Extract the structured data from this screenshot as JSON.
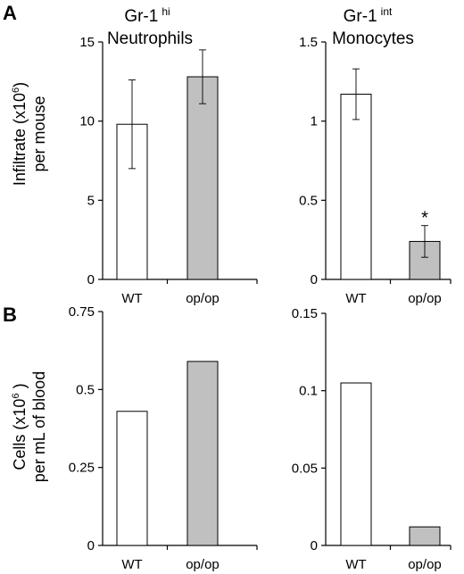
{
  "panel_labels": {
    "a": "A",
    "b": "B"
  },
  "column_titles": {
    "left": {
      "main": "Gr-1",
      "sup": "hi",
      "sub": "Neutrophils"
    },
    "right": {
      "main": "Gr-1",
      "sup": "int",
      "sub": "Monocytes"
    }
  },
  "row_ylabels": {
    "a": {
      "line1_pre": "Infiltrate (x10",
      "line1_sup": "6",
      "line1_post": ")",
      "line2": "per mouse"
    },
    "b": {
      "line1_pre": "Cells (x10",
      "line1_sup": "6",
      "line1_post": " )",
      "line2": "per mL of blood"
    }
  },
  "colors": {
    "wt_fill": "#ffffff",
    "opop_fill": "#c0c0c0",
    "outline": "#000000"
  },
  "chart_data": [
    {
      "id": "A-left",
      "type": "bar",
      "categories": [
        "WT",
        "op/op"
      ],
      "values": [
        9.8,
        12.8
      ],
      "errors": [
        2.8,
        1.7
      ],
      "ylim": [
        0,
        15
      ],
      "ticks": [
        0,
        5,
        10,
        15
      ],
      "tick_labels": [
        "0",
        "5",
        "10",
        "15"
      ],
      "annotations": []
    },
    {
      "id": "A-right",
      "type": "bar",
      "categories": [
        "WT",
        "op/op"
      ],
      "values": [
        1.17,
        0.24
      ],
      "errors": [
        0.16,
        0.1
      ],
      "ylim": [
        0,
        1.5
      ],
      "ticks": [
        0,
        0.5,
        1,
        1.5
      ],
      "tick_labels": [
        "0",
        "0.5",
        "1",
        "1.5"
      ],
      "annotations": [
        {
          "category": "op/op",
          "text": "*"
        }
      ]
    },
    {
      "id": "B-left",
      "type": "bar",
      "categories": [
        "WT",
        "op/op"
      ],
      "values": [
        0.43,
        0.59
      ],
      "errors": [],
      "ylim": [
        0,
        0.75
      ],
      "ticks": [
        0,
        0.25,
        0.5,
        0.75
      ],
      "tick_labels": [
        "0",
        "0.25",
        "0.5",
        "0.75"
      ],
      "annotations": []
    },
    {
      "id": "B-right",
      "type": "bar",
      "categories": [
        "WT",
        "op/op"
      ],
      "values": [
        0.105,
        0.012
      ],
      "errors": [],
      "ylim": [
        0,
        0.15
      ],
      "ticks": [
        0,
        0.05,
        0.1,
        0.15
      ],
      "tick_labels": [
        "0",
        "0.05",
        "0.1",
        "0.15"
      ],
      "annotations": []
    }
  ]
}
